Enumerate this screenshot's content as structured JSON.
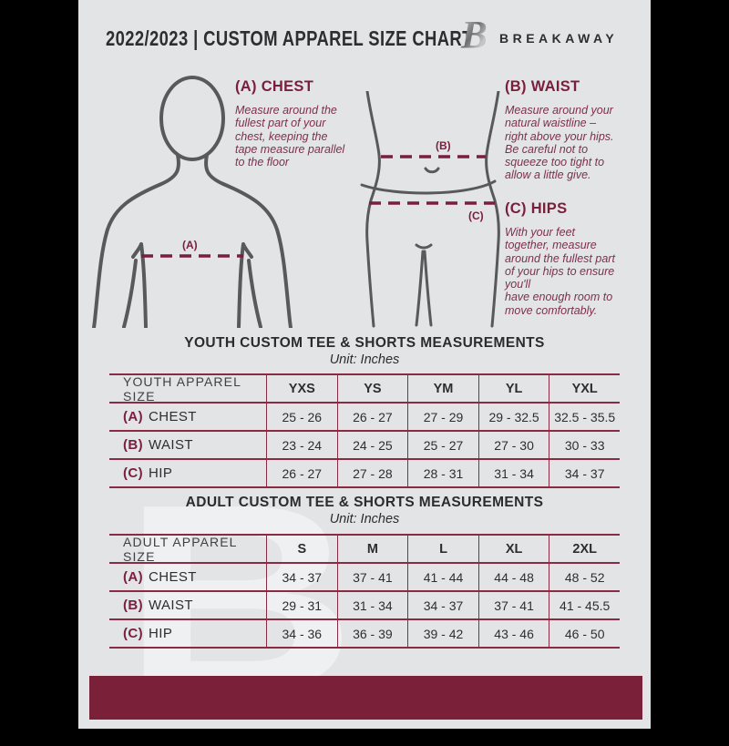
{
  "header": {
    "title": "2022/2023  |  CUSTOM APPAREL SIZE CHART",
    "brand": "BREAKAWAY",
    "logo_letter": "B"
  },
  "guide": {
    "chest": {
      "heading": "(A) CHEST",
      "marker": "(A)",
      "body": "Measure around the\nfullest part of your\nchest, keeping the\ntape measure parallel\nto the floor"
    },
    "waist": {
      "heading": "(B) WAIST",
      "marker": "(B)",
      "body": "Measure around your\nnatural waistline –\nright above your hips.\nBe careful not to\nsqueeze too tight to\nallow a little give."
    },
    "hips": {
      "heading": "(C) HIPS",
      "marker": "(C)",
      "body": "With your feet\ntogether, measure\naround the fullest part\nof your hips to ensure\nyou'll\nhave enough room to\nmove comfortably."
    }
  },
  "youth": {
    "title": "YOUTH CUSTOM TEE & SHORTS MEASUREMENTS",
    "unit": "Unit: Inches",
    "table": {
      "header": [
        "YOUTH APPAREL SIZE",
        "YXS",
        "YS",
        "YM",
        "YL",
        "YXL"
      ],
      "rows": [
        {
          "prefix": "(A)",
          "label": "CHEST",
          "values": [
            "25 - 26",
            "26 - 27",
            "27 - 29",
            "29 - 32.5",
            "32.5 - 35.5"
          ]
        },
        {
          "prefix": "(B)",
          "label": "WAIST",
          "values": [
            "23 - 24",
            "24 - 25",
            "25 - 27",
            "27 - 30",
            "30 - 33"
          ]
        },
        {
          "prefix": "(C)",
          "label": "HIP",
          "values": [
            "26 - 27",
            "27 - 28",
            "28 - 31",
            "31 - 34",
            "34 - 37"
          ]
        }
      ]
    }
  },
  "adult": {
    "title": "ADULT CUSTOM TEE & SHORTS MEASUREMENTS",
    "unit": "Unit: Inches",
    "table": {
      "header": [
        "ADULT APPAREL SIZE",
        "S",
        "M",
        "L",
        "XL",
        "2XL"
      ],
      "rows": [
        {
          "prefix": "(A)",
          "label": "CHEST",
          "values": [
            "34 - 37",
            "37 - 41",
            "41 - 44",
            "44 - 48",
            "48 - 52"
          ]
        },
        {
          "prefix": "(B)",
          "label": "WAIST",
          "values": [
            "29 - 31",
            "31 - 34",
            "34 - 37",
            "37 - 41",
            "41 - 45.5"
          ]
        },
        {
          "prefix": "(C)",
          "label": "HIP",
          "values": [
            "34 - 36",
            "36 - 39",
            "39 - 42",
            "43 - 46",
            "46 - 50"
          ]
        }
      ]
    }
  },
  "watermark": "B",
  "colors": {
    "maroon": "#7a1f3b",
    "maroon_text": "#7e2f50",
    "table_border": "#8a2b44",
    "bottom_bar": "#7a2038",
    "page_bg": "#e3e4e6",
    "outer_bg": "#000000",
    "dark_text": "#2d2e30",
    "figure_stroke": "#58595b",
    "watermark_color": "#f4f5f6"
  }
}
